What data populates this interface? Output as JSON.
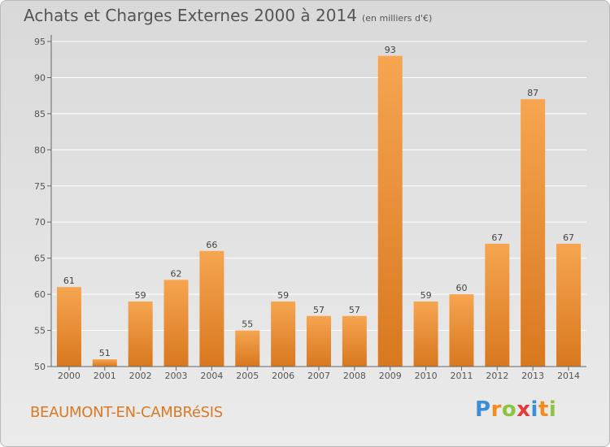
{
  "header": {
    "title": "Achats et Charges Externes 2000 à 2014",
    "unit": "(en milliers d'€)"
  },
  "footer": {
    "commune": "BEAUMONT-EN-CAMBRéSIS",
    "brand": "Proxiti",
    "brand_letters": [
      {
        "ch": "P",
        "color": "#3c8fd6"
      },
      {
        "ch": "r",
        "color": "#f28c1f"
      },
      {
        "ch": "o",
        "color": "#8bc53f"
      },
      {
        "ch": "x",
        "color": "#e53935"
      },
      {
        "ch": "i",
        "color": "#3c8fd6"
      },
      {
        "ch": "t",
        "color": "#f28c1f"
      },
      {
        "ch": "i",
        "color": "#8bc53f"
      }
    ]
  },
  "colors": {
    "bar_top": "#f6a550",
    "bar_bottom": "#d8781f",
    "grid": "#ffffff",
    "axis": "#666666"
  },
  "chart_data": {
    "type": "bar",
    "categories": [
      "2000",
      "2001",
      "2002",
      "2003",
      "2004",
      "2005",
      "2006",
      "2007",
      "2008",
      "2009",
      "2010",
      "2011",
      "2012",
      "2013",
      "2014"
    ],
    "values": [
      61,
      51,
      59,
      62,
      66,
      55,
      59,
      57,
      57,
      93,
      59,
      60,
      67,
      87,
      67
    ],
    "title": "Achats et Charges Externes 2000 à 2014",
    "xlabel": "",
    "ylabel": "",
    "ylim": [
      50,
      95
    ],
    "yticks": [
      50,
      55,
      60,
      65,
      70,
      75,
      80,
      85,
      90,
      95
    ],
    "grid": true,
    "data_labels": true
  }
}
